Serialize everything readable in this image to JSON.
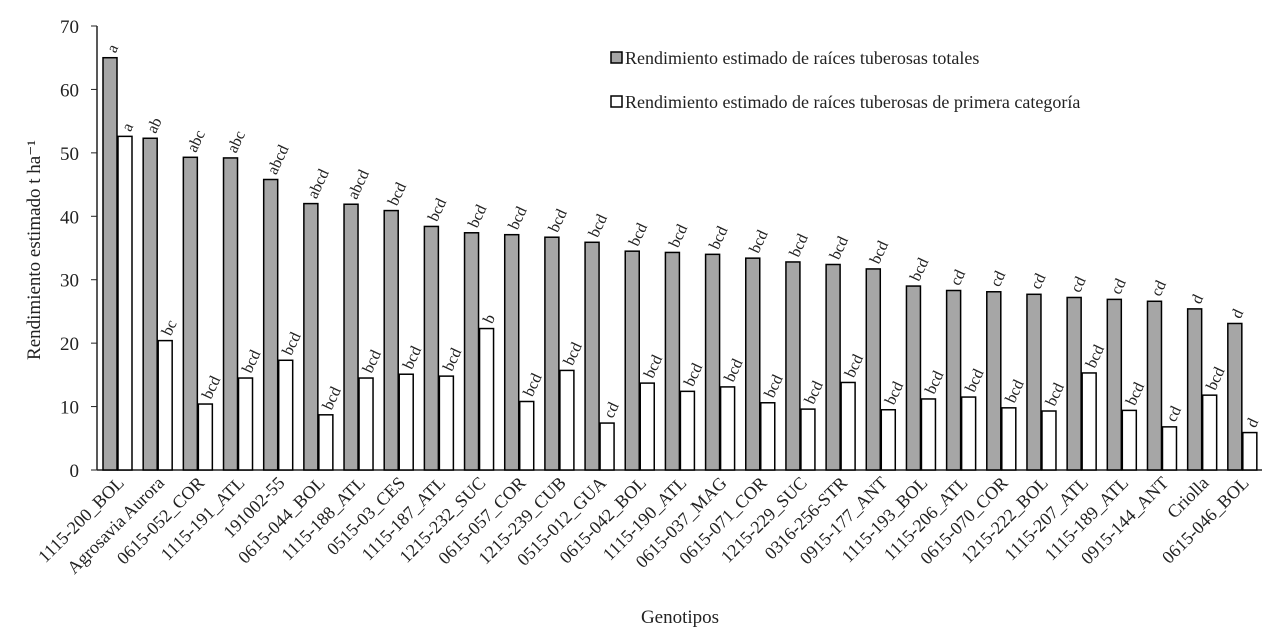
{
  "chart_data": {
    "type": "bar",
    "ylabel": "Rendimiento estimado t ha⁻¹",
    "xlabel": "Genotipos",
    "categories": [
      "1115-200_BOL",
      "Agrosavia Aurora",
      "0615-052_COR",
      "1115-191_ATL",
      "191002-55",
      "0615-044_BOL",
      "1115-188_ATL",
      "0515-03_CES",
      "1115-187_ATL",
      "1215-232_SUC",
      "0615-057_COR",
      "1215-239_CUB",
      "0515-012_GUA",
      "0615-042_BOL",
      "1115-190_ATL",
      "0615-037_MAG",
      "0615-071_COR",
      "1215-229_SUC",
      "0316-256-STR",
      "0915-177_ANT",
      "1115-193_BOL",
      "1115-206_ATL",
      "0615-070_COR",
      "1215-222_BOL",
      "1115-207_ATL",
      "1115-189_ATL",
      "0915-144_ANT",
      "Criolla",
      "0615-046_BOL"
    ],
    "series": [
      {
        "name": "Rendimiento estimado de raíces tuberosas totales",
        "color": "#a6a6a6",
        "values": [
          65.0,
          52.3,
          49.3,
          49.2,
          45.8,
          42.0,
          41.9,
          40.9,
          38.4,
          37.4,
          37.1,
          36.7,
          35.9,
          34.5,
          34.3,
          34.0,
          33.4,
          32.8,
          32.4,
          31.7,
          29.0,
          28.3,
          28.1,
          27.7,
          27.2,
          26.9,
          26.6,
          25.4,
          23.1
        ],
        "letters": [
          "a",
          "ab",
          "abc",
          "abc",
          "abcd",
          "abcd",
          "abcd",
          "bcd",
          "bcd",
          "bcd",
          "bcd",
          "bcd",
          "bcd",
          "bcd",
          "bcd",
          "bcd",
          "bcd",
          "bcd",
          "bcd",
          "bcd",
          "bcd",
          "cd",
          "cd",
          "cd",
          "cd",
          "cd",
          "cd",
          "d",
          "d"
        ]
      },
      {
        "name": "Rendimiento estimado de raíces tuberosas de primera categoría",
        "color": "#ffffff",
        "values": [
          52.6,
          20.4,
          10.4,
          14.5,
          17.3,
          8.7,
          14.5,
          15.1,
          14.8,
          22.3,
          10.8,
          15.7,
          7.4,
          13.7,
          12.4,
          13.1,
          10.6,
          9.6,
          13.8,
          9.5,
          11.2,
          11.5,
          9.8,
          9.3,
          15.3,
          9.4,
          6.8,
          11.8,
          5.9
        ],
        "letters": [
          "a",
          "bc",
          "bcd",
          "bcd",
          "bcd",
          "bcd",
          "bcd",
          "bcd",
          "bcd",
          "b",
          "bcd",
          "bcd",
          "cd",
          "bcd",
          "bcd",
          "bcd",
          "bcd",
          "bcd",
          "bcd",
          "bcd",
          "bcd",
          "bcd",
          "bcd",
          "bcd",
          "bcd",
          "bcd",
          "cd",
          "bcd",
          "d"
        ]
      }
    ],
    "ylim": [
      0,
      70
    ],
    "yticks": [
      0,
      10,
      20,
      30,
      40,
      50,
      60,
      70
    ],
    "grid": false,
    "legend": "top-right"
  }
}
